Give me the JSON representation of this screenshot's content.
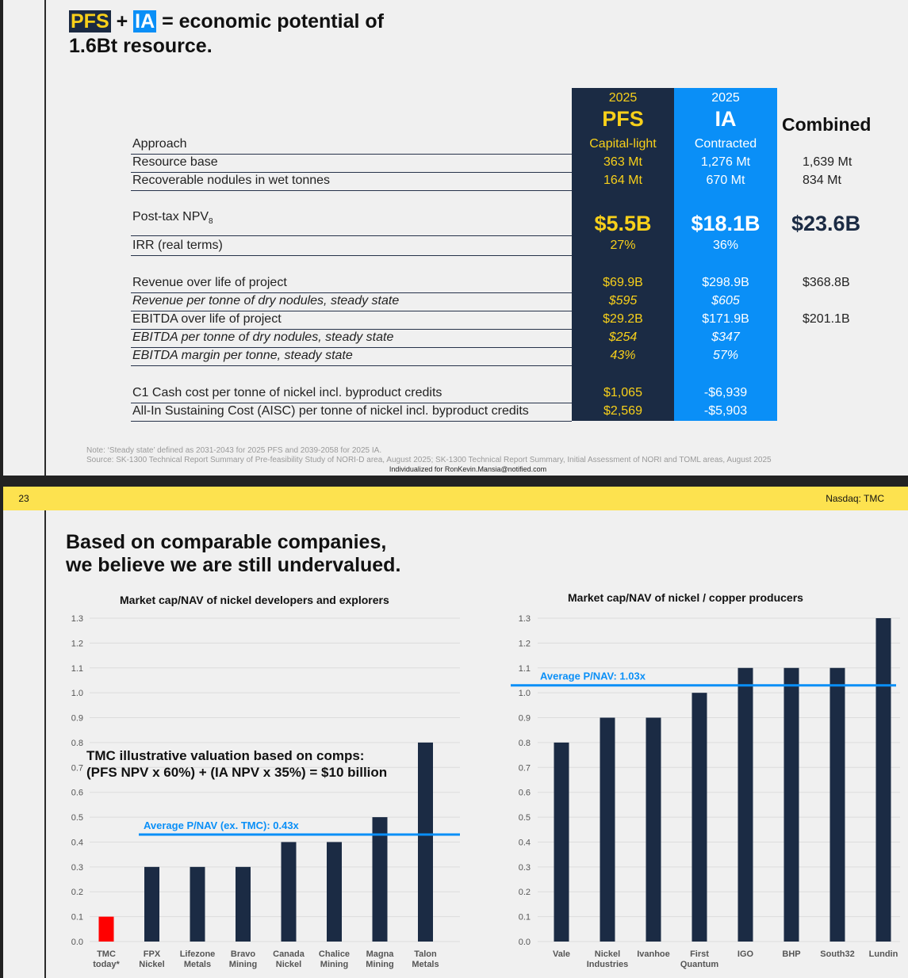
{
  "slide1": {
    "title": {
      "pfs": "PFS",
      "plus": " + ",
      "ia": "IA",
      "rest_line1": " = economic potential of",
      "line2": "1.6Bt resource."
    },
    "columns": {
      "pfs": {
        "year": "2025",
        "name": "PFS",
        "color": "#1b2b44",
        "text_color": "#f8d01a"
      },
      "ia": {
        "year": "2025",
        "name": "IA",
        "color": "#0a8ff7",
        "text_color": "#ffffff"
      },
      "combined": {
        "name": "Combined"
      }
    },
    "rows": [
      {
        "label": "Approach",
        "pfs": "Capital-light",
        "ia": "Contracted",
        "combined": ""
      },
      {
        "label": "Resource base",
        "pfs": "363 Mt",
        "ia": "1,276 Mt",
        "combined": "1,639 Mt"
      },
      {
        "label": "Recoverable nodules in wet tonnes",
        "pfs": "164 Mt",
        "ia": "670 Mt",
        "combined": "834 Mt"
      },
      {
        "label": "Post-tax NPV",
        "label_sub": "8",
        "pfs": "$5.5B",
        "ia": "$18.1B",
        "combined": "$23.6B"
      },
      {
        "label": "IRR (real terms)",
        "pfs": "27%",
        "ia": "36%",
        "combined": ""
      },
      {
        "label": "Revenue over life of project",
        "pfs": "$69.9B",
        "ia": "$298.9B",
        "combined": "$368.8B"
      },
      {
        "label": "Revenue per tonne of dry nodules, steady state",
        "pfs": "$595",
        "ia": "$605",
        "combined": ""
      },
      {
        "label": "EBITDA over life of project",
        "pfs": "$29.2B",
        "ia": "$171.9B",
        "combined": "$201.1B"
      },
      {
        "label": "EBITDA per tonne of dry nodules, steady state",
        "pfs": "$254",
        "ia": "$347",
        "combined": ""
      },
      {
        "label": "EBITDA margin per tonne, steady state",
        "pfs": "43%",
        "ia": "57%",
        "combined": ""
      },
      {
        "label": "C1 Cash cost per tonne of nickel incl. byproduct credits",
        "pfs": "$1,065",
        "ia": "-$6,939",
        "combined": ""
      },
      {
        "label": "All-In Sustaining Cost (AISC) per tonne of nickel incl. byproduct credits",
        "pfs": "$2,569",
        "ia": "-$5,903",
        "combined": ""
      }
    ],
    "note": "Note: ‘Steady state’ defined as 2031-2043 for 2025 PFS and 2039-2058 for 2025 IA.",
    "source": "Source: SK-1300 Technical Report Summary of Pre-feasibility Study of NORI-D area, August 2025; SK-1300 Technical Report Summary, Initial Assessment of NORI and TOML areas, August 2025",
    "individualized": "Individualized for RonKevin.Mansia@notified.com"
  },
  "slide2": {
    "page_number": "23",
    "ticker": "Nasdaq: TMC",
    "title_line1": "Based on comparable companies,",
    "title_line2": "we believe we are still undervalued.",
    "annotation_line1": "TMC illustrative valuation based on comps:",
    "annotation_line2": "(PFS NPV x 60%) + (IA NPV x 35%) = $10 billion"
  },
  "chart_data": [
    {
      "type": "bar",
      "title": "Market cap/NAV of nickel developers and explorers",
      "categories": [
        [
          "TMC",
          "today*"
        ],
        [
          "FPX",
          "Nickel"
        ],
        [
          "Lifezone",
          "Metals"
        ],
        [
          "Bravo",
          "Mining"
        ],
        [
          "Canada",
          "Nickel"
        ],
        [
          "Chalice",
          "Mining"
        ],
        [
          "Magna",
          "Mining"
        ],
        [
          "Talon",
          "Metals"
        ]
      ],
      "values": [
        0.1,
        0.3,
        0.3,
        0.3,
        0.4,
        0.4,
        0.5,
        0.8
      ],
      "bar_colors": [
        "#ff0000",
        "#1b2b44",
        "#1b2b44",
        "#1b2b44",
        "#1b2b44",
        "#1b2b44",
        "#1b2b44",
        "#1b2b44"
      ],
      "ylim": [
        0,
        1.3
      ],
      "yticks": [
        "0.0",
        "0.1",
        "0.2",
        "0.3",
        "0.4",
        "0.5",
        "0.6",
        "0.7",
        "0.8",
        "0.9",
        "1.0",
        "1.1",
        "1.2",
        "1.3"
      ],
      "grid": true,
      "average": {
        "value": 0.43,
        "label": "Average P/NAV (ex. TMC): 0.43x",
        "color": "#0a8ff7"
      }
    },
    {
      "type": "bar",
      "title": "Market cap/NAV of nickel / copper producers",
      "categories": [
        [
          "Vale"
        ],
        [
          "Nickel",
          "Industries"
        ],
        [
          "Ivanhoe"
        ],
        [
          "First",
          "Quantum"
        ],
        [
          "IGO"
        ],
        [
          "BHP"
        ],
        [
          "South32"
        ],
        [
          "Lundin"
        ]
      ],
      "values": [
        0.8,
        0.9,
        0.9,
        1.0,
        1.1,
        1.1,
        1.1,
        1.3
      ],
      "bar_colors": [
        "#1b2b44",
        "#1b2b44",
        "#1b2b44",
        "#1b2b44",
        "#1b2b44",
        "#1b2b44",
        "#1b2b44",
        "#1b2b44"
      ],
      "ylim": [
        0,
        1.3
      ],
      "yticks": [
        "0.0",
        "0.1",
        "0.2",
        "0.3",
        "0.4",
        "0.5",
        "0.6",
        "0.7",
        "0.8",
        "0.9",
        "1.0",
        "1.1",
        "1.2",
        "1.3"
      ],
      "grid": true,
      "average": {
        "value": 1.03,
        "label": "Average P/NAV: 1.03x",
        "color": "#0a8ff7"
      }
    }
  ]
}
